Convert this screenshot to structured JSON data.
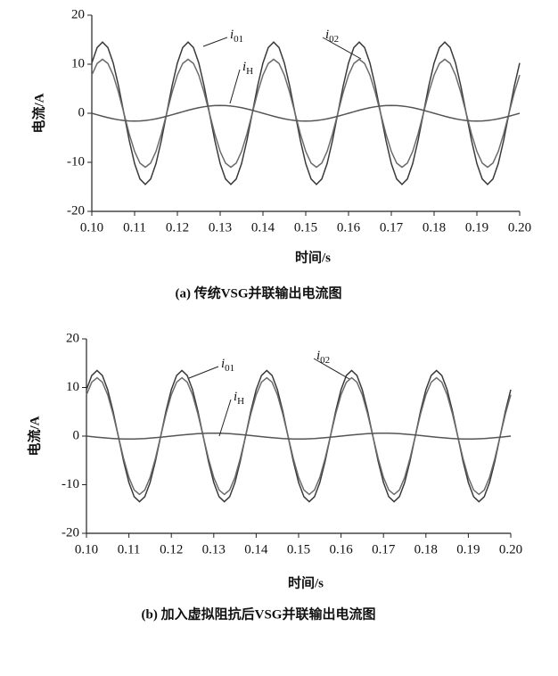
{
  "chart_data": [
    {
      "type": "line",
      "caption": "(a) 传统VSG并联输出电流图",
      "xlabel": "时间/s",
      "ylabel": "电流/A",
      "xlim": [
        0.1,
        0.2
      ],
      "ylim": [
        -20,
        20
      ],
      "xticks": [
        {
          "value": 0.1,
          "label": "0.10"
        },
        {
          "value": 0.11,
          "label": "0.11"
        },
        {
          "value": 0.12,
          "label": "0.12"
        },
        {
          "value": 0.13,
          "label": "0.13"
        },
        {
          "value": 0.14,
          "label": "0.14"
        },
        {
          "value": 0.15,
          "label": "0.15"
        },
        {
          "value": 0.16,
          "label": "0.16"
        },
        {
          "value": 0.17,
          "label": "0.17"
        },
        {
          "value": 0.18,
          "label": "0.18"
        },
        {
          "value": 0.19,
          "label": "0.19"
        },
        {
          "value": 0.2,
          "label": "0.20"
        }
      ],
      "yticks": [
        20,
        10,
        0,
        -10,
        -20
      ],
      "x": [
        0.1,
        0.10125,
        0.1025,
        0.10375,
        0.105,
        0.10625,
        0.1075,
        0.10875,
        0.11,
        0.11125,
        0.1125,
        0.11375,
        0.115,
        0.11625,
        0.1175,
        0.11875,
        0.12,
        0.12125,
        0.1225,
        0.12375,
        0.125,
        0.12625,
        0.1275,
        0.12875,
        0.13,
        0.13125,
        0.1325,
        0.13375,
        0.135,
        0.13625,
        0.1375,
        0.13875,
        0.14,
        0.14125,
        0.1425,
        0.14375,
        0.145,
        0.14625,
        0.1475,
        0.14875,
        0.15,
        0.15125,
        0.1525,
        0.15375,
        0.155,
        0.15625,
        0.1575,
        0.15875,
        0.16,
        0.16125,
        0.1625,
        0.16375,
        0.165,
        0.16625,
        0.1675,
        0.16875,
        0.17,
        0.17125,
        0.1725,
        0.17375,
        0.175,
        0.17625,
        0.1775,
        0.17875,
        0.18,
        0.18125,
        0.1825,
        0.18375,
        0.185,
        0.18625,
        0.1875,
        0.18875,
        0.19,
        0.19125,
        0.1925,
        0.19375,
        0.195,
        0.19625,
        0.1975,
        0.19875,
        0.2
      ],
      "series": [
        {
          "name": "i01",
          "color": "#3a3a3a",
          "values": [
            10.25,
            13.4,
            14.5,
            13.4,
            10.25,
            5.55,
            0,
            -5.55,
            -10.25,
            -13.4,
            -14.5,
            -13.4,
            -10.25,
            -5.55,
            0,
            5.55,
            10.25,
            13.4,
            14.5,
            13.4,
            10.25,
            5.55,
            0,
            -5.55,
            -10.25,
            -13.4,
            -14.5,
            -13.4,
            -10.25,
            -5.55,
            0,
            5.55,
            10.25,
            13.4,
            14.5,
            13.4,
            10.25,
            5.55,
            0,
            -5.55,
            -10.25,
            -13.4,
            -14.5,
            -13.4,
            -10.25,
            -5.55,
            0,
            5.55,
            10.25,
            13.4,
            14.5,
            13.4,
            10.25,
            5.55,
            0,
            -5.55,
            -10.25,
            -13.4,
            -14.5,
            -13.4,
            -10.25,
            -5.55,
            0,
            5.55,
            10.25,
            13.4,
            14.5,
            13.4,
            10.25,
            5.55,
            0,
            -5.55,
            -10.25,
            -13.4,
            -14.5,
            -13.4,
            -10.25,
            -5.55,
            0,
            5.55,
            10.25
          ]
        },
        {
          "name": "i02",
          "color": "#6a6a6a",
          "values": [
            7.78,
            10.16,
            11,
            10.16,
            7.78,
            4.21,
            0,
            -4.21,
            -7.78,
            -10.16,
            -11,
            -10.16,
            -7.78,
            -4.21,
            0,
            4.21,
            7.78,
            10.16,
            11,
            10.16,
            7.78,
            4.21,
            0,
            -4.21,
            -7.78,
            -10.16,
            -11,
            -10.16,
            -7.78,
            -4.21,
            0,
            4.21,
            7.78,
            10.16,
            11,
            10.16,
            7.78,
            4.21,
            0,
            -4.21,
            -7.78,
            -10.16,
            -11,
            -10.16,
            -7.78,
            -4.21,
            0,
            4.21,
            7.78,
            10.16,
            11,
            10.16,
            7.78,
            4.21,
            0,
            -4.21,
            -7.78,
            -10.16,
            -11,
            -10.16,
            -7.78,
            -4.21,
            0,
            4.21,
            7.78,
            10.16,
            11,
            10.16,
            7.78,
            4.21,
            0,
            -4.21,
            -7.78,
            -10.16,
            -11,
            -10.16,
            -7.78,
            -4.21,
            0,
            4.21,
            7.78
          ]
        },
        {
          "name": "iH",
          "color": "#555555",
          "values": [
            0,
            -0.31,
            -0.61,
            -0.89,
            -1.13,
            -1.33,
            -1.48,
            -1.57,
            -1.6,
            -1.57,
            -1.48,
            -1.33,
            -1.13,
            -0.89,
            -0.61,
            -0.31,
            0,
            0.31,
            0.61,
            0.89,
            1.13,
            1.33,
            1.48,
            1.57,
            1.6,
            1.57,
            1.48,
            1.33,
            1.13,
            0.89,
            0.61,
            0.31,
            0,
            -0.31,
            -0.61,
            -0.89,
            -1.13,
            -1.33,
            -1.48,
            -1.57,
            -1.6,
            -1.57,
            -1.48,
            -1.33,
            -1.13,
            -0.89,
            -0.61,
            -0.31,
            0,
            0.31,
            0.61,
            0.89,
            1.13,
            1.33,
            1.48,
            1.57,
            1.6,
            1.57,
            1.48,
            1.33,
            1.13,
            0.89,
            0.61,
            0.31,
            0,
            -0.31,
            -0.61,
            -0.89,
            -1.13,
            -1.33,
            -1.48,
            -1.57,
            -1.6,
            -1.57,
            -1.48,
            -1.33,
            -1.13,
            -0.89,
            -0.61,
            -0.31,
            0
          ]
        }
      ]
    },
    {
      "type": "line",
      "caption": "(b) 加入虚拟阻抗后VSG并联输出电流图",
      "xlabel": "时间/s",
      "ylabel": "电流/A",
      "xlim": [
        0.1,
        0.2
      ],
      "ylim": [
        -20,
        20
      ],
      "xticks": [
        {
          "value": 0.1,
          "label": "0.10"
        },
        {
          "value": 0.11,
          "label": "0.11"
        },
        {
          "value": 0.12,
          "label": "0.12"
        },
        {
          "value": 0.13,
          "label": "0.13"
        },
        {
          "value": 0.14,
          "label": "0.14"
        },
        {
          "value": 0.15,
          "label": "0.15"
        },
        {
          "value": 0.16,
          "label": "0.16"
        },
        {
          "value": 0.17,
          "label": "0.17"
        },
        {
          "value": 0.18,
          "label": "0.18"
        },
        {
          "value": 0.19,
          "label": "0.19"
        },
        {
          "value": 0.2,
          "label": "0.20"
        }
      ],
      "yticks": [
        20,
        10,
        0,
        -10,
        -20
      ],
      "x": [
        0.1,
        0.10125,
        0.1025,
        0.10375,
        0.105,
        0.10625,
        0.1075,
        0.10875,
        0.11,
        0.11125,
        0.1125,
        0.11375,
        0.115,
        0.11625,
        0.1175,
        0.11875,
        0.12,
        0.12125,
        0.1225,
        0.12375,
        0.125,
        0.12625,
        0.1275,
        0.12875,
        0.13,
        0.13125,
        0.1325,
        0.13375,
        0.135,
        0.13625,
        0.1375,
        0.13875,
        0.14,
        0.14125,
        0.1425,
        0.14375,
        0.145,
        0.14625,
        0.1475,
        0.14875,
        0.15,
        0.15125,
        0.1525,
        0.15375,
        0.155,
        0.15625,
        0.1575,
        0.15875,
        0.16,
        0.16125,
        0.1625,
        0.16375,
        0.165,
        0.16625,
        0.1675,
        0.16875,
        0.17,
        0.17125,
        0.1725,
        0.17375,
        0.175,
        0.17625,
        0.1775,
        0.17875,
        0.18,
        0.18125,
        0.1825,
        0.18375,
        0.185,
        0.18625,
        0.1875,
        0.18875,
        0.19,
        0.19125,
        0.1925,
        0.19375,
        0.195,
        0.19625,
        0.1975,
        0.19875,
        0.2
      ],
      "series": [
        {
          "name": "i01",
          "color": "#3a3a3a",
          "values": [
            9.55,
            12.47,
            13.5,
            12.47,
            9.55,
            5.17,
            0,
            -5.17,
            -9.55,
            -12.47,
            -13.5,
            -12.47,
            -9.55,
            -5.17,
            0,
            5.17,
            9.55,
            12.47,
            13.5,
            12.47,
            9.55,
            5.17,
            0,
            -5.17,
            -9.55,
            -12.47,
            -13.5,
            -12.47,
            -9.55,
            -5.17,
            0,
            5.17,
            9.55,
            12.47,
            13.5,
            12.47,
            9.55,
            5.17,
            0,
            -5.17,
            -9.55,
            -12.47,
            -13.5,
            -12.47,
            -9.55,
            -5.17,
            0,
            5.17,
            9.55,
            12.47,
            13.5,
            12.47,
            9.55,
            5.17,
            0,
            -5.17,
            -9.55,
            -12.47,
            -13.5,
            -12.47,
            -9.55,
            -5.17,
            0,
            5.17,
            9.55,
            12.47,
            13.5,
            12.47,
            9.55,
            5.17,
            0,
            -5.17,
            -9.55,
            -12.47,
            -13.5,
            -12.47,
            -9.55,
            -5.17,
            0,
            5.17,
            9.55
          ]
        },
        {
          "name": "i02",
          "color": "#6a6a6a",
          "values": [
            8.49,
            11.09,
            12,
            11.09,
            8.49,
            4.59,
            0,
            -4.59,
            -8.49,
            -11.09,
            -12,
            -11.09,
            -8.49,
            -4.59,
            0,
            4.59,
            8.49,
            11.09,
            12,
            11.09,
            8.49,
            4.59,
            0,
            -4.59,
            -8.49,
            -11.09,
            -12,
            -11.09,
            -8.49,
            -4.59,
            0,
            4.59,
            8.49,
            11.09,
            12,
            11.09,
            8.49,
            4.59,
            0,
            -4.59,
            -8.49,
            -11.09,
            -12,
            -11.09,
            -8.49,
            -4.59,
            0,
            4.59,
            8.49,
            11.09,
            12,
            11.09,
            8.49,
            4.59,
            0,
            -4.59,
            -8.49,
            -11.09,
            -12,
            -11.09,
            -8.49,
            -4.59,
            0,
            4.59,
            8.49,
            11.09,
            12,
            11.09,
            8.49,
            4.59,
            0,
            -4.59,
            -8.49,
            -11.09,
            -12,
            -11.09,
            -8.49,
            -4.59,
            0,
            4.59,
            8.49
          ]
        },
        {
          "name": "iH",
          "color": "#555555",
          "values": [
            0,
            -0.12,
            -0.23,
            -0.33,
            -0.42,
            -0.5,
            -0.55,
            -0.59,
            -0.6,
            -0.59,
            -0.55,
            -0.5,
            -0.42,
            -0.33,
            -0.23,
            -0.12,
            0,
            0.12,
            0.23,
            0.33,
            0.42,
            0.5,
            0.55,
            0.59,
            0.6,
            0.59,
            0.55,
            0.5,
            0.42,
            0.33,
            0.23,
            0.12,
            0,
            -0.12,
            -0.23,
            -0.33,
            -0.42,
            -0.5,
            -0.55,
            -0.59,
            -0.6,
            -0.59,
            -0.55,
            -0.5,
            -0.42,
            -0.33,
            -0.23,
            -0.12,
            0,
            0.12,
            0.23,
            0.33,
            0.42,
            0.5,
            0.55,
            0.59,
            0.6,
            0.59,
            0.55,
            0.5,
            0.42,
            0.33,
            0.23,
            0.12,
            0,
            -0.12,
            -0.23,
            -0.33,
            -0.42,
            -0.5,
            -0.55,
            -0.59,
            -0.6,
            -0.59,
            -0.55,
            -0.5,
            -0.42,
            -0.33,
            -0.23,
            -0.12,
            0
          ]
        }
      ]
    }
  ]
}
